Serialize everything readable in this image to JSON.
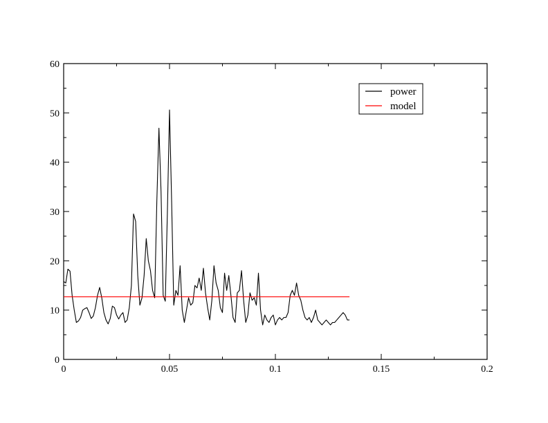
{
  "chart_data": {
    "type": "line",
    "title": "",
    "xlabel": "",
    "ylabel": "",
    "xlim": [
      0,
      0.2
    ],
    "ylim": [
      0,
      60
    ],
    "x_ticks": [
      0,
      0.05,
      0.1,
      0.15,
      0.2
    ],
    "x_tick_labels": [
      "0",
      "0.05",
      "0.1",
      "0.15",
      "0.2"
    ],
    "y_ticks": [
      0,
      10,
      20,
      30,
      40,
      50,
      60
    ],
    "y_tick_labels": [
      "0",
      "10",
      "20",
      "30",
      "40",
      "50",
      "60"
    ],
    "grid": false,
    "legend_position": "top-right",
    "series": [
      {
        "name": "power",
        "color": "#000000",
        "x": [
          0,
          0.001,
          0.002,
          0.003,
          0.004,
          0.005,
          0.006,
          0.007,
          0.008,
          0.009,
          0.01,
          0.011,
          0.012,
          0.013,
          0.014,
          0.015,
          0.016,
          0.017,
          0.018,
          0.019,
          0.02,
          0.021,
          0.022,
          0.023,
          0.024,
          0.025,
          0.026,
          0.027,
          0.028,
          0.029,
          0.03,
          0.031,
          0.032,
          0.033,
          0.034,
          0.035,
          0.036,
          0.037,
          0.038,
          0.039,
          0.04,
          0.041,
          0.042,
          0.043,
          0.044,
          0.045,
          0.046,
          0.047,
          0.048,
          0.049,
          0.05,
          0.051,
          0.052,
          0.053,
          0.054,
          0.055,
          0.056,
          0.057,
          0.058,
          0.059,
          0.06,
          0.061,
          0.062,
          0.063,
          0.064,
          0.065,
          0.066,
          0.067,
          0.068,
          0.069,
          0.07,
          0.071,
          0.072,
          0.073,
          0.074,
          0.075,
          0.076,
          0.077,
          0.078,
          0.079,
          0.08,
          0.081,
          0.082,
          0.083,
          0.084,
          0.085,
          0.086,
          0.087,
          0.088,
          0.089,
          0.09,
          0.091,
          0.092,
          0.093,
          0.094,
          0.095,
          0.096,
          0.097,
          0.098,
          0.099,
          0.1,
          0.101,
          0.102,
          0.103,
          0.104,
          0.105,
          0.106,
          0.107,
          0.108,
          0.109,
          0.11,
          0.111,
          0.112,
          0.113,
          0.114,
          0.115,
          0.116,
          0.117,
          0.118,
          0.119,
          0.12,
          0.121,
          0.122,
          0.123,
          0.124,
          0.125,
          0.126,
          0.127,
          0.128,
          0.129,
          0.13,
          0.131,
          0.132,
          0.133,
          0.134,
          0.135
        ],
        "y": [
          15.8,
          15.5,
          18.3,
          17.9,
          13.0,
          10.0,
          7.5,
          7.8,
          8.5,
          10.0,
          10.3,
          10.5,
          9.5,
          8.3,
          8.8,
          10.5,
          13.0,
          14.6,
          12.5,
          9.5,
          8.0,
          7.2,
          8.3,
          10.8,
          10.5,
          9.0,
          8.2,
          9.0,
          9.5,
          7.5,
          8.0,
          10.5,
          15.0,
          29.5,
          28.0,
          17.0,
          11.0,
          12.5,
          17.0,
          24.5,
          20.0,
          18.0,
          14.0,
          12.5,
          32.0,
          46.9,
          34.0,
          13.0,
          11.8,
          30.0,
          50.6,
          32.0,
          11.0,
          14.0,
          13.0,
          19.0,
          10.0,
          7.5,
          10.0,
          12.5,
          11.0,
          11.5,
          15.0,
          14.5,
          16.5,
          14.0,
          18.5,
          13.5,
          10.5,
          8.0,
          12.0,
          19.0,
          15.5,
          14.0,
          10.5,
          9.5,
          17.5,
          14.0,
          17.0,
          13.0,
          8.5,
          7.5,
          13.5,
          14.0,
          18.0,
          12.0,
          7.5,
          9.0,
          13.5,
          12.0,
          12.5,
          11.0,
          17.5,
          10.0,
          7.0,
          9.0,
          8.0,
          7.5,
          8.5,
          9.0,
          7.0,
          8.0,
          8.5,
          8.0,
          8.5,
          8.5,
          9.5,
          13.0,
          14.0,
          13.0,
          15.5,
          13.0,
          12.0,
          10.0,
          8.5,
          8.0,
          8.5,
          7.5,
          8.5,
          10.0,
          8.0,
          7.5,
          7.0,
          7.5,
          8.0,
          7.5,
          7.0,
          7.5,
          7.5,
          8.0,
          8.5,
          9.0,
          9.5,
          9.0,
          8.0,
          8.0
        ]
      },
      {
        "name": "model",
        "color": "#ff0000",
        "x": [
          0,
          0.135
        ],
        "y": [
          12.7,
          12.7
        ]
      }
    ]
  }
}
